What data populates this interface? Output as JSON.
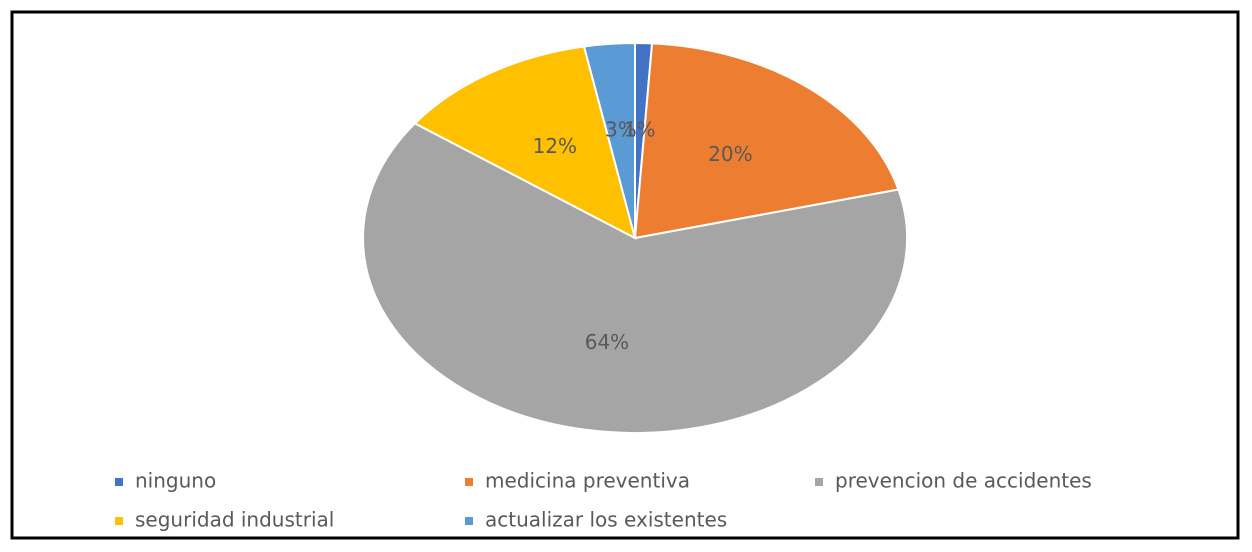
{
  "chart_data": {
    "type": "pie",
    "categories": [
      "ninguno",
      "medicina preventiva",
      "prevencion de accidentes",
      "seguridad industrial",
      "actualizar los existentes"
    ],
    "values": [
      1,
      20,
      64,
      12,
      3
    ],
    "value_labels": [
      "1%",
      "20%",
      "64%",
      "12%",
      "3%"
    ],
    "colors": [
      "#4472c4",
      "#ed7d31",
      "#a5a5a5",
      "#ffc000",
      "#5b9bd5"
    ],
    "legend": "bottom"
  }
}
